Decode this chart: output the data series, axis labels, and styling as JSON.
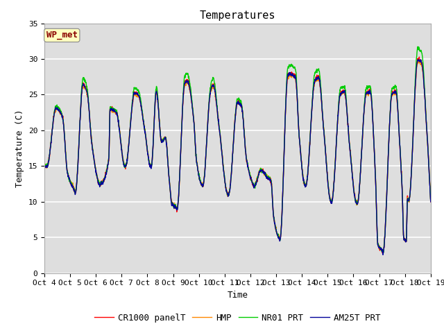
{
  "title": "Temperatures",
  "xlabel": "Time",
  "ylabel": "Temperature (C)",
  "ylim": [
    0,
    35
  ],
  "series_labels": [
    "CR1000 panelT",
    "HMP",
    "NR01 PRT",
    "AM25T PRT"
  ],
  "series_colors": [
    "#ff0000",
    "#ff8800",
    "#00cc00",
    "#000099"
  ],
  "series_linewidths": [
    1.0,
    1.0,
    1.0,
    1.0
  ],
  "annotation_text": "WP_met",
  "annotation_color": "#8b0000",
  "annotation_bg": "#ffffc0",
  "background_color": "#ffffff",
  "plot_bg_color": "#dedede",
  "grid_color": "#ffffff",
  "title_fontsize": 11,
  "axis_fontsize": 9,
  "tick_fontsize": 8,
  "legend_fontsize": 9,
  "x_tick_labels": [
    "Oct 4",
    "Oct 5",
    "Oct 6",
    "Oct 7",
    "Oct 8",
    "Oct 9",
    "Oct 10",
    "Oct 11",
    "Oct 12",
    "Oct 13",
    "Oct 14",
    "Oct 15",
    "Oct 16",
    "Oct 17",
    "Oct 18",
    "Oct 19"
  ],
  "y_ticks": [
    0,
    5,
    10,
    15,
    20,
    25,
    30,
    35
  ],
  "days": 15
}
